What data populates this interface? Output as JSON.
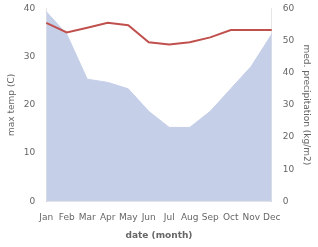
{
  "chart_data": {
    "type": "line",
    "categories": [
      "Jan",
      "Feb",
      "Mar",
      "Apr",
      "May",
      "Jun",
      "Jul",
      "Aug",
      "Sep",
      "Oct",
      "Nov",
      "Dec"
    ],
    "series": [
      {
        "type": "area",
        "axis": "y2",
        "color": "#c5cfe8",
        "values": [
          59,
          52,
          38,
          37,
          35,
          28,
          23,
          23,
          28,
          35,
          42,
          52
        ]
      },
      {
        "type": "line",
        "color": "#c0504d",
        "values": [
          37,
          35,
          36,
          37,
          36.5,
          33,
          32.5,
          33,
          34,
          35.5,
          35.5,
          35.5
        ]
      }
    ],
    "xlabel": "date (month)",
    "ylabel": "max temp (C)",
    "y2label": "med. precipitation (kg/m2)",
    "ylim": [
      0,
      40
    ],
    "yticks": [
      0,
      10,
      20,
      30,
      40
    ],
    "y2lim": [
      0,
      60
    ],
    "y2ticks": [
      0,
      10,
      20,
      30,
      40,
      50,
      60
    ],
    "grid": false
  }
}
